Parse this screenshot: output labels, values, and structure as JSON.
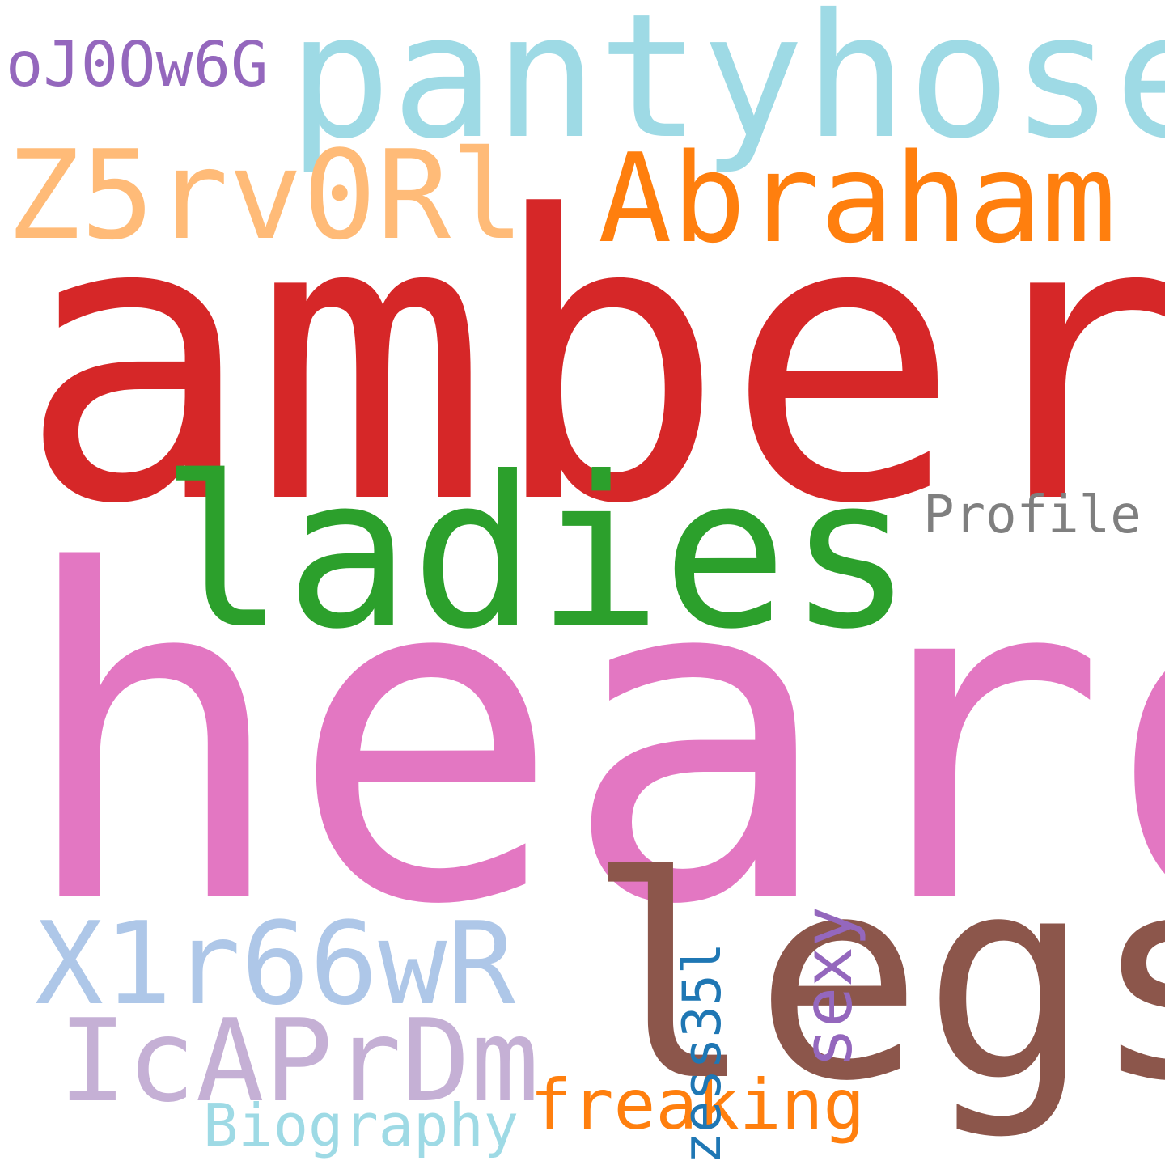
{
  "words": [
    {
      "id": "amber",
      "text": "amber",
      "color": "#d62728",
      "orientation": "horizontal"
    },
    {
      "id": "heard",
      "text": "heard",
      "color": "#e377c2",
      "orientation": "horizontal"
    },
    {
      "id": "pantyhose",
      "text": "pantyhose",
      "color": "#9edae5",
      "orientation": "horizontal"
    },
    {
      "id": "ladies",
      "text": "ladies",
      "color": "#2ca02c",
      "orientation": "horizontal"
    },
    {
      "id": "legs",
      "text": "legs",
      "color": "#8c564b",
      "orientation": "horizontal"
    },
    {
      "id": "abraham",
      "text": "Abraham",
      "color": "#ff7f0e",
      "orientation": "horizontal"
    },
    {
      "id": "z5rv",
      "text": "Z5rv0Rl",
      "color": "#ffbb78",
      "orientation": "horizontal"
    },
    {
      "id": "x1r",
      "text": "X1r66wR",
      "color": "#aec7e8",
      "orientation": "horizontal"
    },
    {
      "id": "icap",
      "text": "IcAPrDm",
      "color": "#c5b0d5",
      "orientation": "horizontal"
    },
    {
      "id": "freaking",
      "text": "freaking",
      "color": "#ff7f0e",
      "orientation": "horizontal"
    },
    {
      "id": "biography",
      "text": "Biography",
      "color": "#9edae5",
      "orientation": "horizontal"
    },
    {
      "id": "oj0",
      "text": "oJ0Ow6G",
      "color": "#9467bd",
      "orientation": "horizontal"
    },
    {
      "id": "profile",
      "text": "Profile",
      "color": "#7f7f7f",
      "orientation": "horizontal"
    },
    {
      "id": "sexy",
      "text": "sexy",
      "color": "#9467bd",
      "orientation": "vertical"
    },
    {
      "id": "zess",
      "text": "zess35l",
      "color": "#1f77b4",
      "orientation": "vertical"
    }
  ]
}
